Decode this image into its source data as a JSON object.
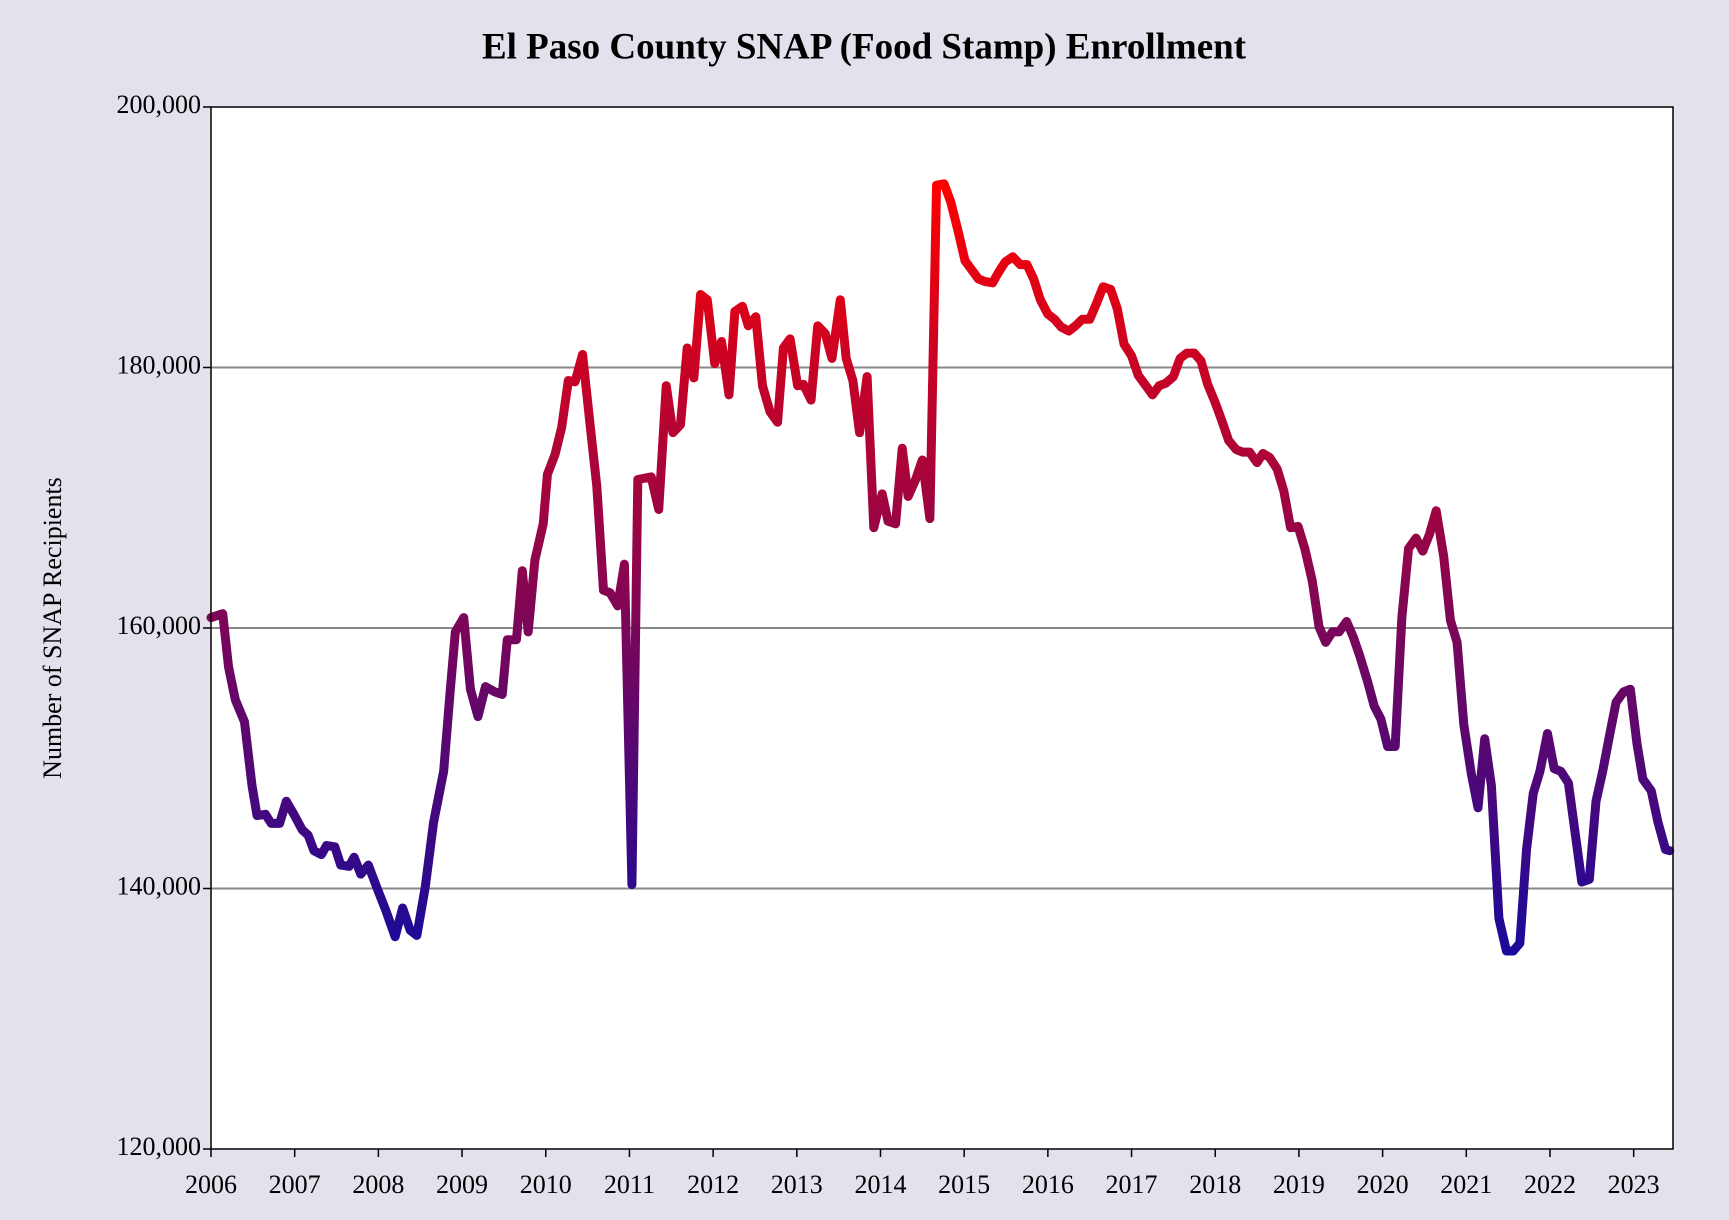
{
  "chart_data": {
    "type": "line",
    "title": "El Paso County SNAP (Food Stamp) Enrollment",
    "y_label": "Number of SNAP Recipients",
    "colors": [
      "#1a0a9a",
      "#ff0000"
    ],
    "grid": true,
    "xlim": [
      2006,
      2023.47
    ],
    "xticks": [
      2006,
      2007,
      2008,
      2009,
      2010,
      2011,
      2012,
      2013,
      2014,
      2015,
      2016,
      2017,
      2018,
      2019,
      2020,
      2021,
      2022,
      2023
    ],
    "ylim": [
      120000,
      200000
    ],
    "yticks": [
      {
        "value": 120000,
        "label": "120,000"
      },
      {
        "value": 140000,
        "label": "140,000"
      },
      {
        "value": 160000,
        "label": "160,000"
      },
      {
        "value": 180000,
        "label": "180,000"
      },
      {
        "value": 200000,
        "label": "200,000"
      }
    ],
    "x": [
      2006.0,
      2006.14,
      2006.21,
      2006.29,
      2006.4,
      2006.49,
      2006.55,
      2006.65,
      2006.72,
      2006.82,
      2006.9,
      2006.99,
      2007.09,
      2007.16,
      2007.23,
      2007.32,
      2007.38,
      2007.48,
      2007.55,
      2007.65,
      2007.71,
      2007.79,
      2007.88,
      2007.98,
      2008.09,
      2008.2,
      2008.29,
      2008.38,
      2008.46,
      2008.56,
      2008.66,
      2008.78,
      2008.86,
      2008.92,
      2009.02,
      2009.1,
      2009.19,
      2009.28,
      2009.39,
      2009.48,
      2009.54,
      2009.65,
      2009.72,
      2009.79,
      2009.87,
      2009.97,
      2010.02,
      2010.11,
      2010.19,
      2010.27,
      2010.35,
      2010.44,
      2010.53,
      2010.61,
      2010.69,
      2010.77,
      2010.86,
      2010.94,
      2011.03,
      2011.1,
      2011.26,
      2011.35,
      2011.44,
      2011.52,
      2011.61,
      2011.69,
      2011.77,
      2011.85,
      2011.93,
      2012.02,
      2012.1,
      2012.19,
      2012.26,
      2012.35,
      2012.42,
      2012.51,
      2012.59,
      2012.68,
      2012.77,
      2012.84,
      2012.92,
      2013.01,
      2013.08,
      2013.17,
      2013.25,
      2013.34,
      2013.42,
      2013.52,
      2013.59,
      2013.67,
      2013.75,
      2013.84,
      2013.92,
      2014.02,
      2014.09,
      2014.18,
      2014.26,
      2014.33,
      2014.42,
      2014.5,
      2014.59,
      2014.67,
      2014.76,
      2014.84,
      2014.93,
      2015.01,
      2015.09,
      2015.17,
      2015.25,
      2015.34,
      2015.41,
      2015.49,
      2015.58,
      2015.67,
      2015.75,
      2015.83,
      2015.91,
      2016.0,
      2016.08,
      2016.16,
      2016.25,
      2016.33,
      2016.41,
      2016.5,
      2016.58,
      2016.66,
      2016.75,
      2016.83,
      2016.91,
      2017.0,
      2017.08,
      2017.16,
      2017.25,
      2017.33,
      2017.41,
      2017.5,
      2017.58,
      2017.66,
      2017.75,
      2017.83,
      2017.91,
      2018.0,
      2018.08,
      2018.16,
      2018.25,
      2018.33,
      2018.41,
      2018.5,
      2018.57,
      2018.65,
      2018.74,
      2018.82,
      2018.9,
      2018.99,
      2019.07,
      2019.16,
      2019.24,
      2019.32,
      2019.4,
      2019.48,
      2019.57,
      2019.65,
      2019.73,
      2019.82,
      2019.9,
      2019.98,
      2020.06,
      2020.15,
      2020.23,
      2020.31,
      2020.4,
      2020.48,
      2020.56,
      2020.64,
      2020.73,
      2020.81,
      2020.89,
      2020.97,
      2021.06,
      2021.14,
      2021.22,
      2021.3,
      2021.39,
      2021.48,
      2021.56,
      2021.64,
      2021.72,
      2021.8,
      2021.88,
      2021.97,
      2022.05,
      2022.13,
      2022.22,
      2022.3,
      2022.38,
      2022.47,
      2022.55,
      2022.63,
      2022.71,
      2022.79,
      2022.88,
      2022.96,
      2023.04,
      2023.11,
      2023.21,
      2023.29,
      2023.38,
      2023.43
    ],
    "values": [
      160800,
      161100,
      157000,
      154500,
      152800,
      147900,
      145600,
      145700,
      145000,
      145000,
      146700,
      145700,
      144500,
      144100,
      142900,
      142600,
      143300,
      143200,
      141800,
      141700,
      142400,
      141100,
      141800,
      140100,
      138300,
      136300,
      138500,
      136800,
      136400,
      140100,
      145100,
      149000,
      155300,
      159700,
      160800,
      155300,
      153200,
      155500,
      155100,
      154900,
      159100,
      159100,
      164400,
      159700,
      165200,
      168000,
      171800,
      173300,
      175400,
      179000,
      178900,
      181000,
      175600,
      170900,
      162900,
      162700,
      161700,
      164900,
      140300,
      171400,
      171600,
      169100,
      178600,
      175000,
      175600,
      181500,
      179200,
      185600,
      185200,
      180300,
      182000,
      177900,
      184300,
      184700,
      183200,
      183900,
      178600,
      176600,
      175800,
      181500,
      182200,
      178600,
      178700,
      177500,
      183200,
      182600,
      180700,
      185200,
      180700,
      179000,
      175000,
      179300,
      167700,
      170300,
      168200,
      168000,
      173800,
      170100,
      171400,
      172900,
      168400,
      194000,
      194100,
      192700,
      190400,
      188200,
      187500,
      186800,
      186600,
      186500,
      187300,
      188100,
      188500,
      187900,
      187900,
      186800,
      185200,
      184100,
      183700,
      183100,
      182800,
      183200,
      183700,
      183700,
      184900,
      186200,
      186000,
      184500,
      181800,
      180900,
      179400,
      178700,
      177900,
      178600,
      178800,
      179300,
      180700,
      181100,
      181100,
      180500,
      178700,
      177300,
      175900,
      174400,
      173700,
      173500,
      173500,
      172700,
      173400,
      173100,
      172200,
      170500,
      167700,
      167800,
      166100,
      163600,
      160100,
      158900,
      159700,
      159700,
      160500,
      159300,
      157800,
      155900,
      154000,
      153000,
      150900,
      150900,
      160800,
      166100,
      166900,
      165900,
      167200,
      169000,
      165500,
      160600,
      158900,
      152600,
      148800,
      146200,
      151500,
      147900,
      137700,
      135200,
      135200,
      135800,
      143000,
      147300,
      149000,
      151900,
      149200,
      149000,
      148100,
      144300,
      140500,
      140700,
      146700,
      149000,
      151700,
      154300,
      155100,
      155300,
      151100,
      148400,
      147500,
      145100,
      143000,
      142900
    ]
  }
}
